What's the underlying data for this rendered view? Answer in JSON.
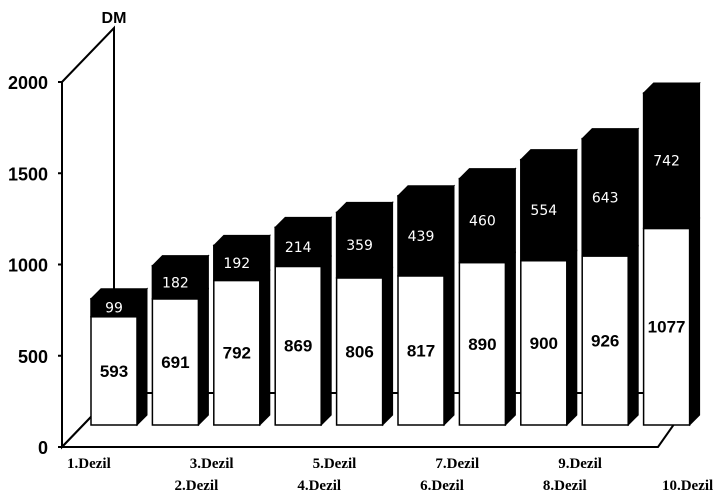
{
  "chart_data": {
    "type": "bar",
    "stacked": true,
    "style": "3d",
    "title": "",
    "xlabel": "",
    "ylabel": "DM",
    "ylim": [
      0,
      2000
    ],
    "yticks": [
      0,
      500,
      1000,
      1500,
      2000
    ],
    "grid": false,
    "categories": [
      "1.Dezil",
      "2.Dezil",
      "3.Dezil",
      "4.Dezil",
      "5.Dezil",
      "6.Dezil",
      "7.Dezil",
      "8.Dezil",
      "9.Dezil",
      "10.Dezil"
    ],
    "series": [
      {
        "values": [
          593,
          691,
          792,
          869,
          806,
          817,
          890,
          900,
          926,
          1077
        ],
        "color": "#ffffff"
      },
      {
        "values": [
          99,
          182,
          192,
          214,
          359,
          439,
          460,
          554,
          643,
          742
        ],
        "color": "#000000"
      }
    ]
  }
}
